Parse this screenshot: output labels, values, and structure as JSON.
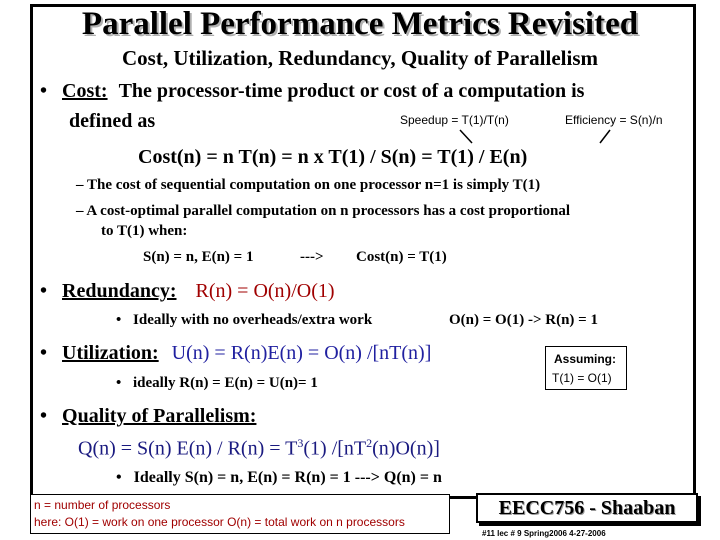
{
  "slide": {
    "title": "Parallel Performance Metrics Revisited",
    "subtitle": "Cost, Utilization, Redundancy, Quality of Parallelism",
    "bullet_char": "•",
    "cost": {
      "label": "Cost:",
      "text_line1": "The processor-time product or cost of a computation is",
      "text_line2": "defined as",
      "speedup_note": "Speedup = T(1)/T(n)",
      "efficiency_note": "Efficiency = S(n)/n",
      "formula": "Cost(n) =  n T(n)  =  n x T(1) / S(n)  =   T(1) / E(n)",
      "sub1": "–  The cost of sequential computation on one processor n=1  is simply T(1)",
      "sub2_line1": "–  A cost-optimal parallel computation on n processors has a cost proportional",
      "sub2_line2": "to T(1)   when:",
      "cond_a": "S(n) = n,  E(n) = 1",
      "cond_arrow": "--->",
      "cond_b": "Cost(n)  =  T(1)"
    },
    "redundancy": {
      "label": "Redundancy:",
      "formula": "R(n) = O(n)/O(1)",
      "ideal": "Ideally with no overheads/extra work",
      "ideal_result": "O(n) = O(1)  -> R(n) = 1"
    },
    "utilization": {
      "label": "Utilization:",
      "formula": "U(n) =  R(n)E(n)  = O(n) /[nT(n)]",
      "ideal": "ideally  R(n) = E(n) = U(n)= 1",
      "assuming_line1": "Assuming:",
      "assuming_line2": "T(1) = O(1)"
    },
    "quality": {
      "label": "Quality of Parallelism:",
      "formula_a": "Q(n) = S(n) E(n)  / R(n)  =  T",
      "formula_sup1": "3",
      "formula_b": "(1) /[nT",
      "formula_sup2": "2",
      "formula_c": "(n)O(n)]",
      "ideal": "Ideally  S(n) = n,  E(n) = R(n) = 1  --->  Q(n)  =  n"
    },
    "legend": {
      "line1": "n = number of processors",
      "line2": "here:   O(1) = work on one processor  O(n) = total work on n processors"
    },
    "course_box": "EECC756 - Shaaban",
    "footer": "#11   lec # 9    Spring2006  4-27-2006"
  },
  "colors": {
    "accent_red": "#a00000",
    "accent_blue": "#2020a0",
    "title_shadow": "#b0b0b0"
  }
}
